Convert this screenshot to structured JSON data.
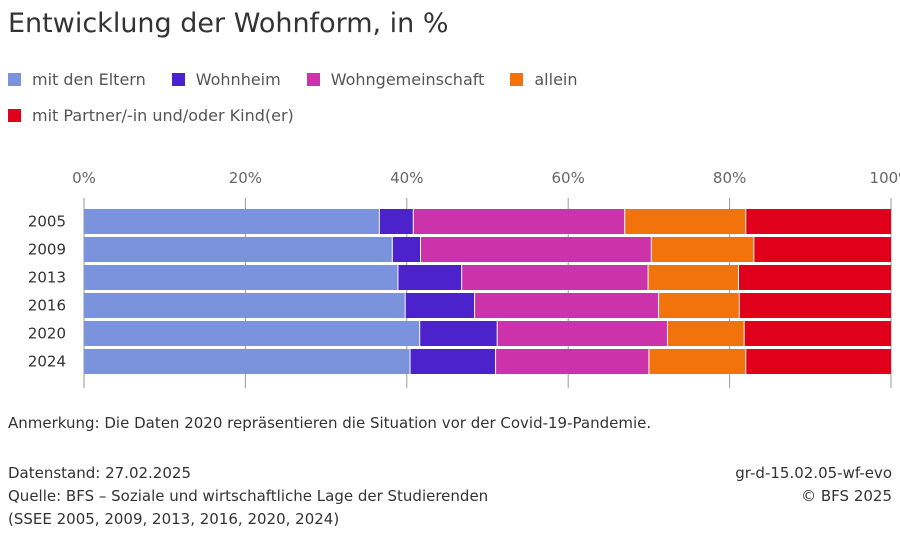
{
  "chart_data": {
    "type": "bar",
    "orientation": "horizontal",
    "stacked": true,
    "title": "Entwicklung der Wohnform, in %",
    "categories": [
      "2005",
      "2009",
      "2013",
      "2016",
      "2020",
      "2024"
    ],
    "series": [
      {
        "name": "mit den Eltern",
        "color": "#7a93dc",
        "values": [
          36.6,
          38.2,
          38.9,
          39.8,
          41.6,
          40.4
        ]
      },
      {
        "name": "Wohnheim",
        "color": "#4b22cc",
        "values": [
          4.2,
          3.5,
          7.9,
          8.6,
          9.6,
          10.6
        ]
      },
      {
        "name": "Wohngemeinschaft",
        "color": "#cc33aa",
        "values": [
          26.2,
          28.6,
          23.1,
          22.8,
          21.1,
          19.0
        ]
      },
      {
        "name": "allein",
        "color": "#f2720c",
        "values": [
          15.0,
          12.7,
          11.2,
          10.0,
          9.5,
          12.0
        ]
      },
      {
        "name": "mit Partner/-in und/oder Kind(er)",
        "color": "#e0001b",
        "values": [
          18.0,
          17.0,
          18.9,
          18.8,
          18.2,
          18.0
        ]
      }
    ],
    "x_axis": {
      "range": [
        0,
        100
      ],
      "ticks": [
        0,
        20,
        40,
        60,
        80,
        100
      ],
      "tick_labels": [
        "0%",
        "20%",
        "40%",
        "60%",
        "80%",
        "100%"
      ],
      "position": "top",
      "grid": true
    },
    "legend_position": "top-left"
  },
  "note": "Anmerkung: Die Daten 2020 repräsentieren die Situation vor der Covid-19-Pandemie.",
  "footer": {
    "datenstand": "Datenstand: 27.02.2025",
    "quelle_line1": "Quelle: BFS – Soziale und wirtschaftliche Lage der Studierenden",
    "quelle_line2": "(SSEE 2005, 2009, 2013, 2016, 2020, 2024)",
    "code": "gr-d-15.02.05-wf-evo",
    "copyright": "© BFS 2025"
  },
  "colors": {
    "text": "#333333",
    "axis_text": "#666666",
    "grid": "#9a9a9a"
  }
}
